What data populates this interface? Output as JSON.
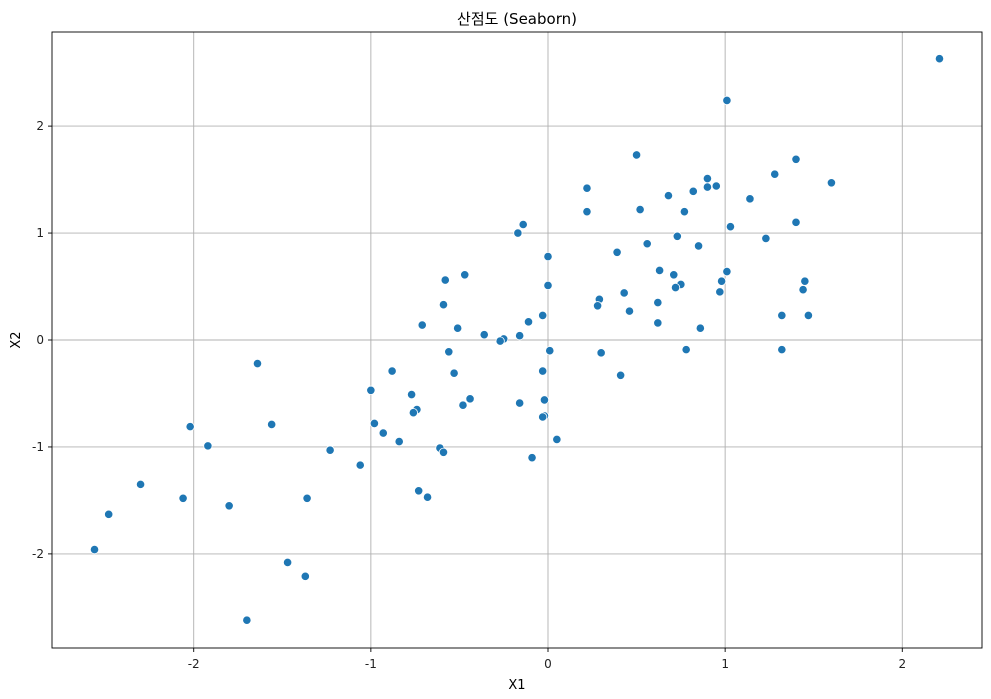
{
  "chart_data": {
    "type": "scatter",
    "title": "산점도 (Seaborn)",
    "xlabel": "X1",
    "ylabel": "X2",
    "xlim": [
      -2.8,
      2.45
    ],
    "ylim": [
      -2.88,
      2.88
    ],
    "xticks": [
      -2,
      -1,
      0,
      1,
      2
    ],
    "yticks": [
      -2,
      -1,
      0,
      1,
      2
    ],
    "grid": true,
    "marker_color": "#1f77b4",
    "points": [
      {
        "x": 2.21,
        "y": 2.63
      },
      {
        "x": 1.01,
        "y": 2.24
      },
      {
        "x": 0.5,
        "y": 1.73
      },
      {
        "x": 1.4,
        "y": 1.69
      },
      {
        "x": 0.9,
        "y": 1.51
      },
      {
        "x": 0.95,
        "y": 1.44
      },
      {
        "x": 0.9,
        "y": 1.43
      },
      {
        "x": 1.28,
        "y": 1.55
      },
      {
        "x": 1.6,
        "y": 1.47
      },
      {
        "x": 0.22,
        "y": 1.42
      },
      {
        "x": 0.82,
        "y": 1.39
      },
      {
        "x": 0.68,
        "y": 1.35
      },
      {
        "x": 1.14,
        "y": 1.32
      },
      {
        "x": 0.52,
        "y": 1.22
      },
      {
        "x": 0.77,
        "y": 1.2
      },
      {
        "x": 0.22,
        "y": 1.2
      },
      {
        "x": 1.4,
        "y": 1.1
      },
      {
        "x": -0.14,
        "y": 1.08
      },
      {
        "x": 1.03,
        "y": 1.06
      },
      {
        "x": -0.17,
        "y": 1.0
      },
      {
        "x": 0.73,
        "y": 0.97
      },
      {
        "x": 1.23,
        "y": 0.95
      },
      {
        "x": 0.56,
        "y": 0.9
      },
      {
        "x": 0.85,
        "y": 0.88
      },
      {
        "x": 0.39,
        "y": 0.82
      },
      {
        "x": 0.0,
        "y": 0.78
      },
      {
        "x": 0.63,
        "y": 0.65
      },
      {
        "x": 1.01,
        "y": 0.64
      },
      {
        "x": 0.71,
        "y": 0.61
      },
      {
        "x": -0.47,
        "y": 0.61
      },
      {
        "x": -0.58,
        "y": 0.56
      },
      {
        "x": 0.98,
        "y": 0.55
      },
      {
        "x": 1.45,
        "y": 0.55
      },
      {
        "x": 0.75,
        "y": 0.52
      },
      {
        "x": 0.0,
        "y": 0.51
      },
      {
        "x": 0.72,
        "y": 0.49
      },
      {
        "x": 1.44,
        "y": 0.47
      },
      {
        "x": 0.97,
        "y": 0.45
      },
      {
        "x": 0.43,
        "y": 0.44
      },
      {
        "x": 0.29,
        "y": 0.38
      },
      {
        "x": 0.62,
        "y": 0.35
      },
      {
        "x": -0.59,
        "y": 0.33
      },
      {
        "x": 0.28,
        "y": 0.32
      },
      {
        "x": 0.46,
        "y": 0.27
      },
      {
        "x": -0.03,
        "y": 0.23
      },
      {
        "x": 1.32,
        "y": 0.23
      },
      {
        "x": 1.47,
        "y": 0.23
      },
      {
        "x": -0.11,
        "y": 0.17
      },
      {
        "x": 0.62,
        "y": 0.16
      },
      {
        "x": -0.71,
        "y": 0.14
      },
      {
        "x": -0.51,
        "y": 0.11
      },
      {
        "x": 0.86,
        "y": 0.11
      },
      {
        "x": -0.36,
        "y": 0.05
      },
      {
        "x": -0.16,
        "y": 0.04
      },
      {
        "x": -0.25,
        "y": 0.01
      },
      {
        "x": -0.27,
        "y": -0.01
      },
      {
        "x": 0.01,
        "y": -0.1
      },
      {
        "x": 0.78,
        "y": -0.09
      },
      {
        "x": 1.32,
        "y": -0.09
      },
      {
        "x": -0.56,
        "y": -0.11
      },
      {
        "x": 0.3,
        "y": -0.12
      },
      {
        "x": -0.88,
        "y": -0.29
      },
      {
        "x": -0.03,
        "y": -0.29
      },
      {
        "x": -0.53,
        "y": -0.31
      },
      {
        "x": 0.41,
        "y": -0.33
      },
      {
        "x": -1.0,
        "y": -0.47
      },
      {
        "x": -0.77,
        "y": -0.51
      },
      {
        "x": -0.44,
        "y": -0.55
      },
      {
        "x": -0.02,
        "y": -0.56
      },
      {
        "x": -0.16,
        "y": -0.59
      },
      {
        "x": -0.48,
        "y": -0.61
      },
      {
        "x": -0.74,
        "y": -0.65
      },
      {
        "x": -0.76,
        "y": -0.68
      },
      {
        "x": -0.02,
        "y": -0.71
      },
      {
        "x": -0.03,
        "y": -0.72
      },
      {
        "x": -0.98,
        "y": -0.78
      },
      {
        "x": -1.56,
        "y": -0.79
      },
      {
        "x": -2.02,
        "y": -0.81
      },
      {
        "x": -0.93,
        "y": -0.87
      },
      {
        "x": 0.05,
        "y": -0.93
      },
      {
        "x": -0.84,
        "y": -0.95
      },
      {
        "x": -1.92,
        "y": -0.99
      },
      {
        "x": -0.61,
        "y": -1.01
      },
      {
        "x": -1.23,
        "y": -1.03
      },
      {
        "x": -0.59,
        "y": -1.05
      },
      {
        "x": -0.09,
        "y": -1.1
      },
      {
        "x": -1.06,
        "y": -1.17
      },
      {
        "x": -2.3,
        "y": -1.35
      },
      {
        "x": -0.73,
        "y": -1.41
      },
      {
        "x": -0.68,
        "y": -1.47
      },
      {
        "x": -2.06,
        "y": -1.48
      },
      {
        "x": -1.36,
        "y": -1.48
      },
      {
        "x": -1.8,
        "y": -1.55
      },
      {
        "x": -2.48,
        "y": -1.63
      },
      {
        "x": -2.56,
        "y": -1.96
      },
      {
        "x": -1.47,
        "y": -2.08
      },
      {
        "x": -1.37,
        "y": -2.21
      },
      {
        "x": -1.7,
        "y": -2.62
      },
      {
        "x": -1.64,
        "y": -0.22
      }
    ]
  }
}
